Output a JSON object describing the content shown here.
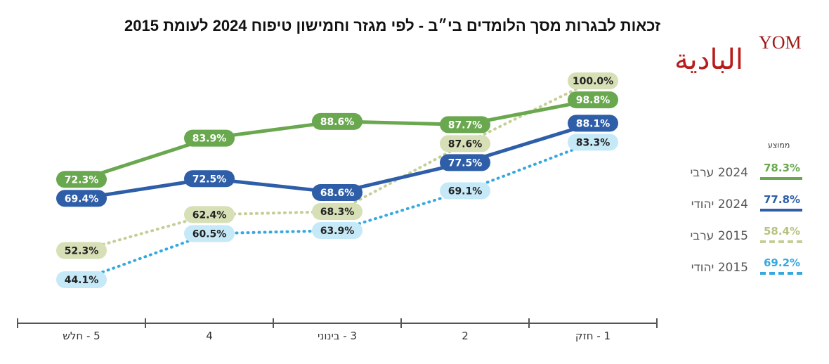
{
  "title": "זכאות לבגרות מסך הלומדים בי״ב - לפי מגזר וחמישון טיפוח 2024 לעומת 2015",
  "logo": {
    "latin": "YOM",
    "arabic": "البادية"
  },
  "legend": {
    "header": "ממוצע",
    "items": [
      {
        "label": "2024 ערבי",
        "value": "78.3%",
        "color": "#6aa84f",
        "style": "solid"
      },
      {
        "label": "2024 יהודי",
        "value": "77.8%",
        "color": "#2e5ea8",
        "style": "solid"
      },
      {
        "label": "2015 ערבי",
        "value": "58.4%",
        "color": "#c3cf95",
        "style": "dotted"
      },
      {
        "label": "2015 יהודי",
        "value": "69.2%",
        "color": "#35a9df",
        "style": "dotted"
      }
    ]
  },
  "chart_data": {
    "type": "line",
    "title": "זכאות לבגרות מסך הלומדים בי״ב - לפי מגזר וחמישון טיפוח 2024 לעומת 2015",
    "categories": [
      "5 - חלש",
      "4",
      "3 - בינוני",
      "2",
      "1 - חזק"
    ],
    "ylim": [
      40,
      105
    ],
    "grid": false,
    "legend_position": "right",
    "series": [
      {
        "name": "2024 ערבי",
        "values": [
          72.3,
          83.9,
          88.6,
          87.7,
          98.8
        ],
        "color": "#6aa84f",
        "pill": "#6aa84f",
        "text": "#ffffff",
        "dotted": false
      },
      {
        "name": "2024 יהודי",
        "values": [
          69.4,
          72.5,
          68.6,
          77.5,
          88.1
        ],
        "color": "#2e5ea8",
        "pill": "#2e5ea8",
        "text": "#ffffff",
        "dotted": false
      },
      {
        "name": "2015 ערבי",
        "values": [
          52.3,
          62.4,
          68.3,
          87.6,
          100.0
        ],
        "color": "#c3cf95",
        "pill": "#d6dfb6",
        "text": "#222222",
        "dotted": true
      },
      {
        "name": "2015 יהודי",
        "values": [
          44.1,
          60.5,
          63.9,
          69.1,
          83.3
        ],
        "color": "#35a9df",
        "pill": "#c6e9f8",
        "text": "#222222",
        "dotted": true
      }
    ]
  }
}
